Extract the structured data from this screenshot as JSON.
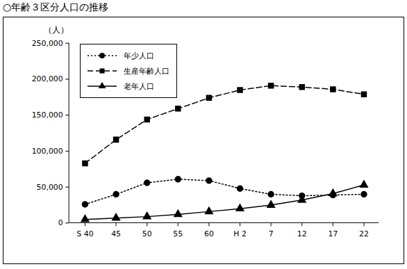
{
  "chart_data": {
    "type": "line",
    "title": "○年齢３区分人口の推移",
    "y_label": "（人）",
    "categories": [
      "S 40",
      "45",
      "50",
      "55",
      "60",
      "H 2",
      "7",
      "12",
      "17",
      "22"
    ],
    "series": [
      {
        "name": "年少人口",
        "color": "#000000",
        "marker": "circle",
        "line_style": "dotted",
        "values": [
          26000,
          40000,
          56000,
          61000,
          59000,
          48000,
          40000,
          38000,
          39000,
          40000
        ]
      },
      {
        "name": "生産年齢人口",
        "color": "#000000",
        "marker": "square",
        "line_style": "dashed",
        "values": [
          83000,
          116000,
          144000,
          159000,
          174000,
          185000,
          191000,
          189000,
          186000,
          179000
        ]
      },
      {
        "name": "老年人口",
        "color": "#000000",
        "marker": "triangle",
        "line_style": "solid",
        "values": [
          5000,
          7000,
          9000,
          12000,
          16000,
          20000,
          25000,
          32000,
          41000,
          53000
        ]
      }
    ],
    "ylim": [
      0,
      250000
    ],
    "yticks": [
      0,
      {
        "value": 50000,
        "label": "50,000"
      },
      {
        "value": 100000,
        "label": "100,000"
      },
      {
        "value": 150000,
        "label": "150,000"
      },
      {
        "value": 200000,
        "label": "200,000"
      },
      {
        "value": 250000,
        "label": "250,000"
      }
    ],
    "grid": false,
    "legend": "top-left"
  }
}
